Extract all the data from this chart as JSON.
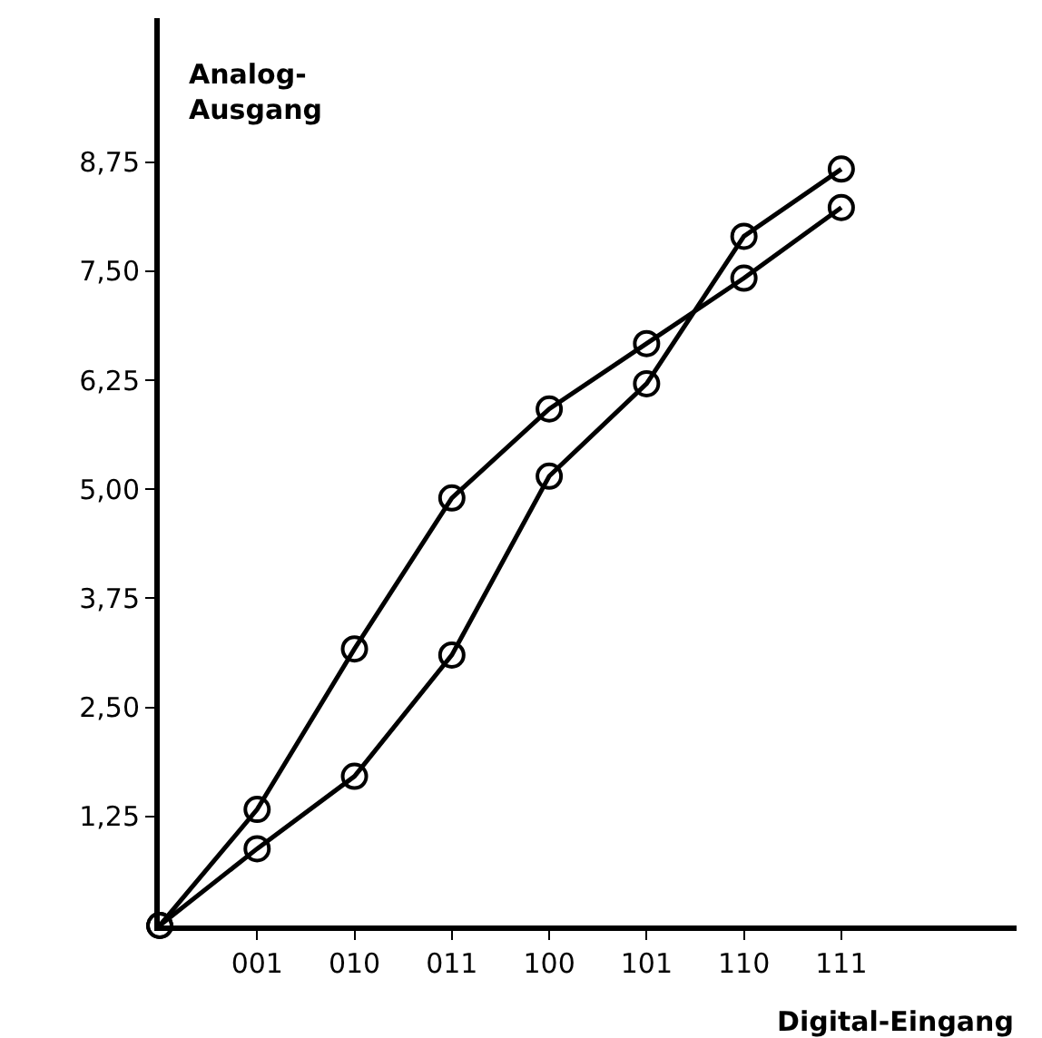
{
  "chart_data": {
    "type": "line",
    "xlabel": "Digital-Eingang",
    "ylabel": "Analog-\nAusgang",
    "categories": [
      null,
      "001",
      "010",
      "011",
      "100",
      "101",
      "110",
      "111"
    ],
    "series": [
      {
        "color": "#000000",
        "values": [
          0,
          1.33,
          3.17,
          4.9,
          5.92,
          6.67,
          7.42,
          8.23
        ]
      },
      {
        "color": "#000000",
        "values": [
          0,
          0.88,
          1.71,
          3.1,
          5.15,
          6.21,
          7.9,
          8.67
        ]
      }
    ],
    "ylim": [
      0,
      10.4
    ],
    "yticks": [
      {
        "value": 1.25,
        "label": "1,25"
      },
      {
        "value": 2.5,
        "label": "2,50"
      },
      {
        "value": 3.75,
        "label": "3,75"
      },
      {
        "value": 5,
        "label": "5,00"
      },
      {
        "value": 6.25,
        "label": "6,25"
      },
      {
        "value": 7.5,
        "label": "7,50"
      },
      {
        "value": 8.75,
        "label": "8,75"
      }
    ],
    "marker": "circle",
    "line_style": "solid"
  }
}
